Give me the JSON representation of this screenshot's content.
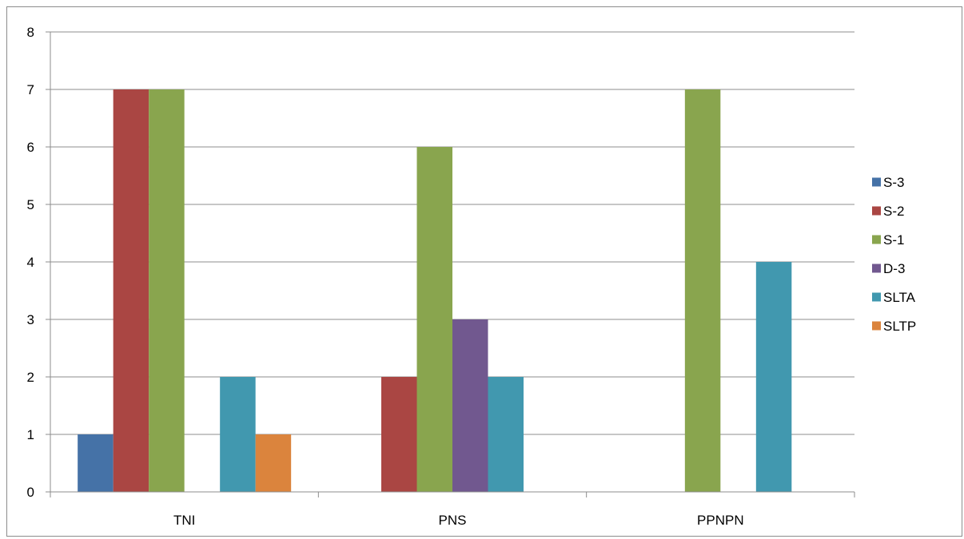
{
  "chart_data": {
    "type": "bar",
    "title": "",
    "xlabel": "",
    "ylabel": "",
    "categories": [
      "TNI",
      "PNS",
      "PPNPN"
    ],
    "ylim": [
      0,
      8
    ],
    "yticks": [
      0,
      1,
      2,
      3,
      4,
      5,
      6,
      7,
      8
    ],
    "grid": true,
    "legend_position": "right",
    "series": [
      {
        "name": "S-3",
        "color": "#4572A7",
        "values": [
          1,
          0,
          0
        ]
      },
      {
        "name": "S-2",
        "color": "#AA4643",
        "values": [
          7,
          2,
          0
        ]
      },
      {
        "name": "S-1",
        "color": "#89A54E",
        "values": [
          7,
          6,
          7
        ]
      },
      {
        "name": "D-3",
        "color": "#71588F",
        "values": [
          0,
          3,
          0
        ]
      },
      {
        "name": "SLTA",
        "color": "#4198AF",
        "values": [
          2,
          2,
          4
        ]
      },
      {
        "name": "SLTP",
        "color": "#DB843D",
        "values": [
          1,
          0,
          0
        ]
      }
    ]
  }
}
